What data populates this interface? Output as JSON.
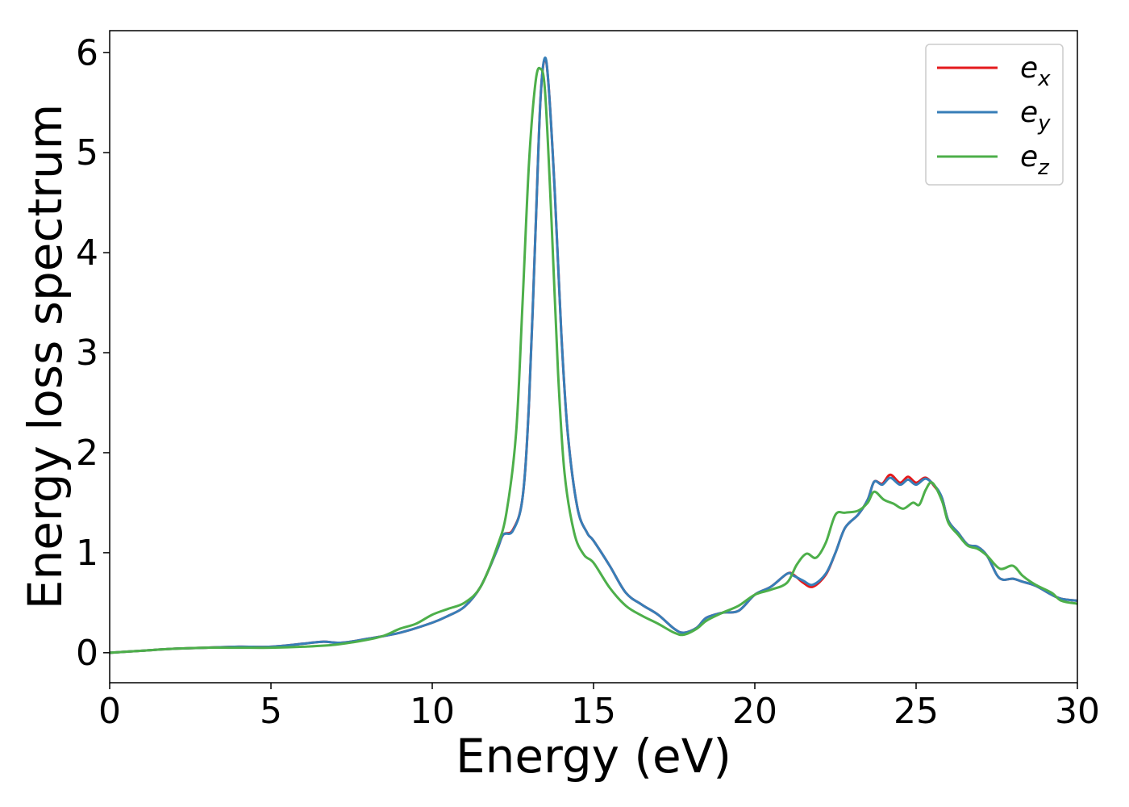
{
  "chart_data": {
    "type": "line",
    "title": "",
    "xlabel": "Energy (eV)",
    "ylabel": "Energy loss spectrum",
    "xlim": [
      0,
      30
    ],
    "ylim": [
      -0.3,
      6.22
    ],
    "xticks": [
      "0",
      "5",
      "10",
      "15",
      "20",
      "25",
      "30"
    ],
    "yticks": [
      "0",
      "1",
      "2",
      "3",
      "4",
      "5",
      "6"
    ],
    "grid": false,
    "legend_position": "top-right",
    "series": [
      {
        "name": "e",
        "subscript": "x",
        "color": "#e41a1c",
        "points": [
          [
            0,
            0
          ],
          [
            1,
            0.02
          ],
          [
            2,
            0.04
          ],
          [
            3,
            0.05
          ],
          [
            4,
            0.06
          ],
          [
            5,
            0.06
          ],
          [
            6,
            0.09
          ],
          [
            6.6,
            0.11
          ],
          [
            7.2,
            0.1
          ],
          [
            8,
            0.14
          ],
          [
            9,
            0.2
          ],
          [
            10,
            0.3
          ],
          [
            10.5,
            0.37
          ],
          [
            11,
            0.46
          ],
          [
            11.5,
            0.66
          ],
          [
            12,
            1.02
          ],
          [
            12.2,
            1.18
          ],
          [
            12.5,
            1.23
          ],
          [
            12.8,
            1.55
          ],
          [
            13,
            2.5
          ],
          [
            13.2,
            4.2
          ],
          [
            13.35,
            5.5
          ],
          [
            13.48,
            5.93
          ],
          [
            13.6,
            5.7
          ],
          [
            13.8,
            4.6
          ],
          [
            14,
            3.2
          ],
          [
            14.2,
            2.2
          ],
          [
            14.5,
            1.45
          ],
          [
            14.8,
            1.2
          ],
          [
            15,
            1.12
          ],
          [
            15.5,
            0.87
          ],
          [
            16,
            0.6
          ],
          [
            16.5,
            0.48
          ],
          [
            17,
            0.38
          ],
          [
            17.5,
            0.24
          ],
          [
            17.8,
            0.2
          ],
          [
            18.2,
            0.25
          ],
          [
            18.5,
            0.35
          ],
          [
            19,
            0.4
          ],
          [
            19.5,
            0.42
          ],
          [
            20,
            0.58
          ],
          [
            20.5,
            0.66
          ],
          [
            21,
            0.79
          ],
          [
            21.2,
            0.78
          ],
          [
            21.5,
            0.7
          ],
          [
            21.8,
            0.66
          ],
          [
            22.2,
            0.78
          ],
          [
            22.5,
            1.0
          ],
          [
            22.8,
            1.25
          ],
          [
            23.2,
            1.38
          ],
          [
            23.5,
            1.53
          ],
          [
            23.7,
            1.71
          ],
          [
            23.95,
            1.69
          ],
          [
            24.2,
            1.78
          ],
          [
            24.5,
            1.7
          ],
          [
            24.75,
            1.76
          ],
          [
            25,
            1.7
          ],
          [
            25.3,
            1.75
          ],
          [
            25.6,
            1.65
          ],
          [
            25.8,
            1.55
          ],
          [
            26,
            1.32
          ],
          [
            26.3,
            1.2
          ],
          [
            26.6,
            1.08
          ],
          [
            26.9,
            1.06
          ],
          [
            27.2,
            0.97
          ],
          [
            27.5,
            0.78
          ],
          [
            27.7,
            0.73
          ],
          [
            28,
            0.74
          ],
          [
            28.3,
            0.71
          ],
          [
            28.7,
            0.67
          ],
          [
            29.2,
            0.58
          ],
          [
            29.5,
            0.54
          ],
          [
            30,
            0.52
          ]
        ]
      },
      {
        "name": "e",
        "subscript": "y",
        "color": "#377eb8",
        "points": [
          [
            0,
            0
          ],
          [
            1,
            0.02
          ],
          [
            2,
            0.04
          ],
          [
            3,
            0.05
          ],
          [
            4,
            0.06
          ],
          [
            5,
            0.06
          ],
          [
            6,
            0.09
          ],
          [
            6.6,
            0.11
          ],
          [
            7.2,
            0.1
          ],
          [
            8,
            0.14
          ],
          [
            9,
            0.2
          ],
          [
            10,
            0.3
          ],
          [
            10.5,
            0.37
          ],
          [
            11,
            0.46
          ],
          [
            11.5,
            0.66
          ],
          [
            12,
            1.02
          ],
          [
            12.2,
            1.18
          ],
          [
            12.5,
            1.22
          ],
          [
            12.8,
            1.55
          ],
          [
            13,
            2.5
          ],
          [
            13.2,
            4.2
          ],
          [
            13.35,
            5.5
          ],
          [
            13.48,
            5.94
          ],
          [
            13.6,
            5.7
          ],
          [
            13.8,
            4.6
          ],
          [
            14,
            3.2
          ],
          [
            14.2,
            2.2
          ],
          [
            14.5,
            1.45
          ],
          [
            14.8,
            1.2
          ],
          [
            15,
            1.12
          ],
          [
            15.5,
            0.87
          ],
          [
            16,
            0.6
          ],
          [
            16.5,
            0.48
          ],
          [
            17,
            0.38
          ],
          [
            17.5,
            0.24
          ],
          [
            17.8,
            0.2
          ],
          [
            18.2,
            0.25
          ],
          [
            18.5,
            0.35
          ],
          [
            19,
            0.4
          ],
          [
            19.5,
            0.42
          ],
          [
            20,
            0.58
          ],
          [
            20.5,
            0.66
          ],
          [
            21,
            0.79
          ],
          [
            21.2,
            0.77
          ],
          [
            21.5,
            0.72
          ],
          [
            21.8,
            0.68
          ],
          [
            22.2,
            0.79
          ],
          [
            22.5,
            1.0
          ],
          [
            22.8,
            1.25
          ],
          [
            23.2,
            1.38
          ],
          [
            23.5,
            1.53
          ],
          [
            23.7,
            1.71
          ],
          [
            23.95,
            1.68
          ],
          [
            24.2,
            1.75
          ],
          [
            24.5,
            1.68
          ],
          [
            24.75,
            1.73
          ],
          [
            25,
            1.68
          ],
          [
            25.3,
            1.74
          ],
          [
            25.6,
            1.66
          ],
          [
            25.8,
            1.55
          ],
          [
            26,
            1.32
          ],
          [
            26.3,
            1.2
          ],
          [
            26.6,
            1.08
          ],
          [
            26.9,
            1.06
          ],
          [
            27.2,
            0.97
          ],
          [
            27.5,
            0.78
          ],
          [
            27.7,
            0.73
          ],
          [
            28,
            0.74
          ],
          [
            28.3,
            0.71
          ],
          [
            28.7,
            0.67
          ],
          [
            29.2,
            0.58
          ],
          [
            29.5,
            0.54
          ],
          [
            30,
            0.52
          ]
        ]
      },
      {
        "name": "e",
        "subscript": "z",
        "color": "#4daf4a",
        "points": [
          [
            0,
            0
          ],
          [
            1,
            0.02
          ],
          [
            2,
            0.04
          ],
          [
            3,
            0.05
          ],
          [
            4,
            0.05
          ],
          [
            5,
            0.05
          ],
          [
            6,
            0.06
          ],
          [
            7,
            0.08
          ],
          [
            8,
            0.13
          ],
          [
            8.5,
            0.17
          ],
          [
            9,
            0.24
          ],
          [
            9.5,
            0.29
          ],
          [
            10,
            0.38
          ],
          [
            10.5,
            0.44
          ],
          [
            11,
            0.5
          ],
          [
            11.5,
            0.66
          ],
          [
            12,
            1.05
          ],
          [
            12.3,
            1.4
          ],
          [
            12.6,
            2.2
          ],
          [
            12.8,
            3.5
          ],
          [
            13,
            4.9
          ],
          [
            13.2,
            5.7
          ],
          [
            13.35,
            5.84
          ],
          [
            13.5,
            5.6
          ],
          [
            13.7,
            4.3
          ],
          [
            13.9,
            2.8
          ],
          [
            14.1,
            1.8
          ],
          [
            14.4,
            1.2
          ],
          [
            14.7,
            0.98
          ],
          [
            15,
            0.9
          ],
          [
            15.5,
            0.65
          ],
          [
            16,
            0.47
          ],
          [
            16.5,
            0.37
          ],
          [
            17,
            0.29
          ],
          [
            17.5,
            0.2
          ],
          [
            17.8,
            0.18
          ],
          [
            18.2,
            0.24
          ],
          [
            18.5,
            0.32
          ],
          [
            19,
            0.4
          ],
          [
            19.5,
            0.47
          ],
          [
            20,
            0.58
          ],
          [
            20.5,
            0.63
          ],
          [
            21,
            0.7
          ],
          [
            21.3,
            0.88
          ],
          [
            21.6,
            0.99
          ],
          [
            21.9,
            0.95
          ],
          [
            22.2,
            1.1
          ],
          [
            22.5,
            1.38
          ],
          [
            22.8,
            1.4
          ],
          [
            23.2,
            1.42
          ],
          [
            23.5,
            1.5
          ],
          [
            23.7,
            1.61
          ],
          [
            24,
            1.53
          ],
          [
            24.3,
            1.49
          ],
          [
            24.6,
            1.44
          ],
          [
            24.9,
            1.5
          ],
          [
            25.1,
            1.48
          ],
          [
            25.3,
            1.63
          ],
          [
            25.5,
            1.7
          ],
          [
            25.8,
            1.52
          ],
          [
            26,
            1.3
          ],
          [
            26.3,
            1.18
          ],
          [
            26.6,
            1.07
          ],
          [
            26.9,
            1.04
          ],
          [
            27.2,
            0.97
          ],
          [
            27.6,
            0.84
          ],
          [
            28,
            0.87
          ],
          [
            28.3,
            0.77
          ],
          [
            28.7,
            0.68
          ],
          [
            29.2,
            0.6
          ],
          [
            29.5,
            0.52
          ],
          [
            30,
            0.49
          ]
        ]
      }
    ]
  }
}
